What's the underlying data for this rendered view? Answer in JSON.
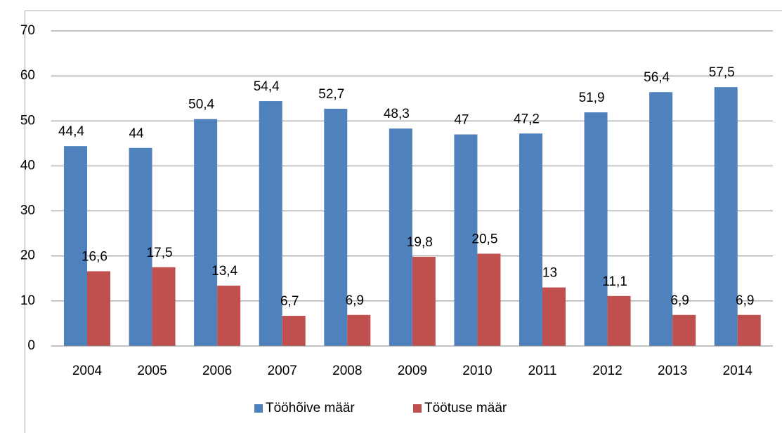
{
  "chart_data": {
    "type": "bar",
    "categories": [
      "2004",
      "2005",
      "2006",
      "2007",
      "2008",
      "2009",
      "2010",
      "2011",
      "2012",
      "2013",
      "2014"
    ],
    "series": [
      {
        "name": "Tööhõive määr",
        "color": "#4f81bd",
        "values": [
          44.4,
          44,
          50.4,
          54.4,
          52.7,
          48.3,
          47,
          47.2,
          51.9,
          56.4,
          57.5
        ],
        "value_labels": [
          "44,4",
          "44",
          "50,4",
          "54,4",
          "52,7",
          "48,3",
          "47",
          "47,2",
          "51,9",
          "56,4",
          "57,5"
        ]
      },
      {
        "name": "Töötuse määr",
        "color": "#c0504d",
        "values": [
          16.6,
          17.5,
          13.4,
          6.7,
          6.9,
          19.8,
          20.5,
          13,
          11.1,
          6.9,
          6.9
        ],
        "value_labels": [
          "16,6",
          "17,5",
          "13,4",
          "6,7",
          "6,9",
          "19,8",
          "20,5",
          "13",
          "11,1",
          "6,9",
          "6,9"
        ]
      }
    ],
    "ylim": [
      0,
      70
    ],
    "yticks": [
      0,
      10,
      20,
      30,
      40,
      50,
      60,
      70
    ],
    "grid": true,
    "legend": "bottom"
  }
}
